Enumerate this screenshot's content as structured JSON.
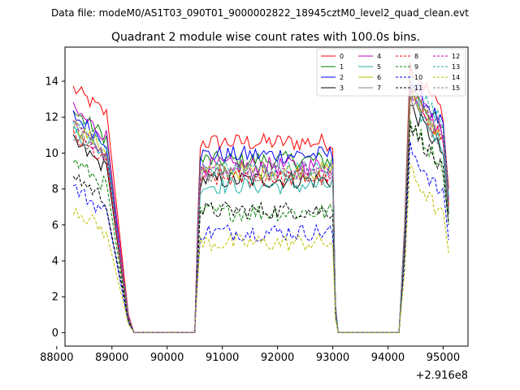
{
  "chart_data": {
    "type": "line",
    "supertitle": "Data file: modeM0/AS1T03_090T01_9000002822_18945cztM0_level2_quad_clean.evt",
    "title": "Quadrant 2 module wise count rates with 100.0s bins.",
    "xlabel": "",
    "ylabel": "",
    "x_offset_label": "+2.916e8",
    "xlim": [
      88150,
      95450
    ],
    "ylim": [
      -0.75,
      15.9
    ],
    "x_ticks": [
      88000,
      89000,
      90000,
      91000,
      92000,
      93000,
      94000,
      95000
    ],
    "y_ticks": [
      0,
      2,
      4,
      6,
      8,
      10,
      12,
      14
    ],
    "grid": false,
    "legend_position": "upper-right",
    "gaps": [
      [
        89400,
        90500
      ],
      [
        93100,
        94200
      ]
    ],
    "segments": [
      [
        88300,
        88900
      ],
      [
        90600,
        93000
      ],
      [
        94400,
        95000
      ]
    ],
    "series": [
      {
        "name": "0",
        "color": "#ff0000",
        "dash": false,
        "levels": [
          12.5,
          10.6,
          13.3
        ]
      },
      {
        "name": "1",
        "color": "#008000",
        "dash": false,
        "levels": [
          11.2,
          9.6,
          12.2
        ]
      },
      {
        "name": "2",
        "color": "#0000ff",
        "dash": false,
        "levels": [
          11.0,
          9.9,
          12.5
        ]
      },
      {
        "name": "3",
        "color": "#000000",
        "dash": false,
        "levels": [
          9.5,
          8.5,
          11.0
        ]
      },
      {
        "name": "4",
        "color": "#bf00bf",
        "dash": false,
        "levels": [
          11.3,
          9.3,
          12.0
        ]
      },
      {
        "name": "5",
        "color": "#20b2aa",
        "dash": false,
        "levels": [
          10.2,
          8.2,
          11.4
        ]
      },
      {
        "name": "6",
        "color": "#bfbf00",
        "dash": false,
        "levels": [
          10.5,
          9.0,
          11.7
        ]
      },
      {
        "name": "7",
        "color": "#808080",
        "dash": false,
        "levels": [
          10.0,
          8.8,
          11.5
        ]
      },
      {
        "name": "8",
        "color": "#ff0000",
        "dash": true,
        "levels": [
          9.8,
          8.6,
          11.8
        ]
      },
      {
        "name": "9",
        "color": "#008000",
        "dash": true,
        "levels": [
          8.5,
          6.7,
          10.2
        ]
      },
      {
        "name": "10",
        "color": "#0000ff",
        "dash": true,
        "levels": [
          7.0,
          5.6,
          8.6
        ]
      },
      {
        "name": "11",
        "color": "#000000",
        "dash": true,
        "levels": [
          7.7,
          6.8,
          10.0
        ]
      },
      {
        "name": "12",
        "color": "#bf00bf",
        "dash": true,
        "levels": [
          10.3,
          9.0,
          12.3
        ]
      },
      {
        "name": "13",
        "color": "#20b2aa",
        "dash": true,
        "levels": [
          10.6,
          9.1,
          12.6
        ]
      },
      {
        "name": "14",
        "color": "#bfbf00",
        "dash": true,
        "levels": [
          5.9,
          5.0,
          7.4
        ]
      },
      {
        "name": "15",
        "color": "#808080",
        "dash": true,
        "levels": [
          10.4,
          8.9,
          12.1
        ]
      }
    ]
  }
}
